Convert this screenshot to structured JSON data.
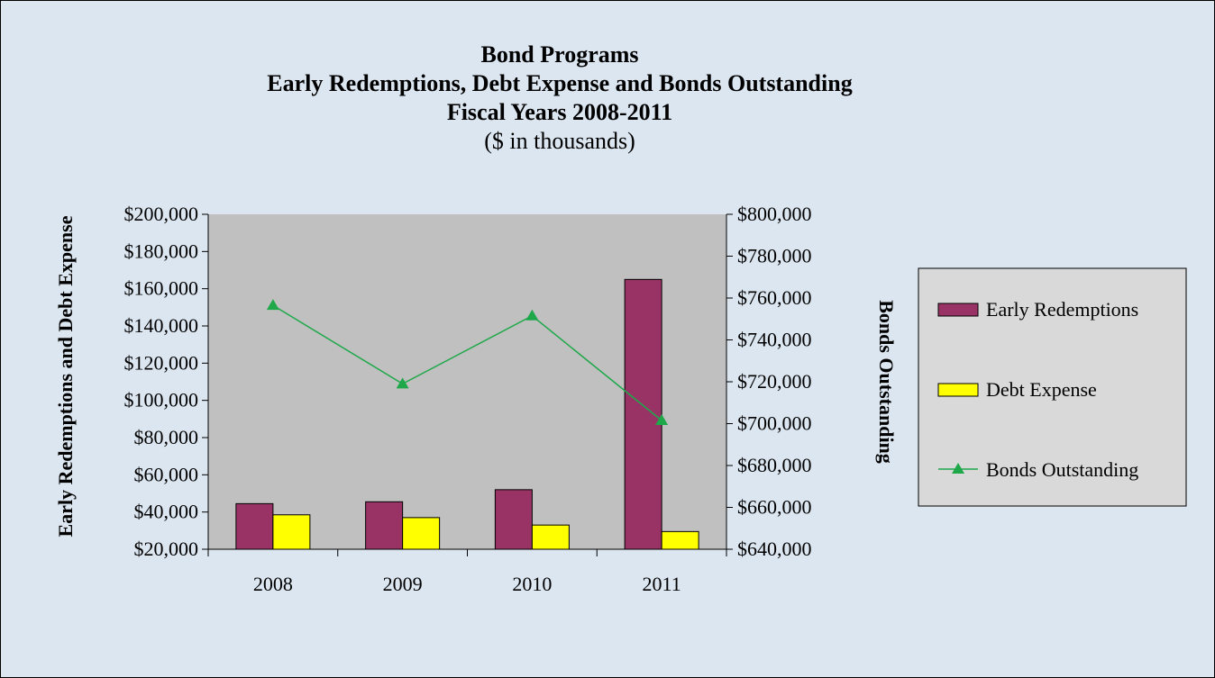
{
  "chart_data": {
    "type": "bar",
    "title": "Bond Programs",
    "title_line2": "Early Redemptions, Debt Expense and Bonds Outstanding",
    "title_line3": "Fiscal Years 2008-2011",
    "subtitle": "($ in thousands)",
    "categories": [
      "2008",
      "2009",
      "2010",
      "2011"
    ],
    "series": [
      {
        "name": "Early Redemptions",
        "type": "bar",
        "axis": "left",
        "color": "#993366",
        "values": [
          44500,
          45500,
          52000,
          165000
        ]
      },
      {
        "name": "Debt Expense",
        "type": "bar",
        "axis": "left",
        "color": "#ffff00",
        "values": [
          38500,
          37000,
          33000,
          29500
        ]
      },
      {
        "name": "Bonds Outstanding",
        "type": "line",
        "axis": "right",
        "color": "#1ea84a",
        "marker": "triangle",
        "values": [
          756500,
          719000,
          751500,
          701500
        ]
      }
    ],
    "ylabel": "Early Redemptions and Debt Expense",
    "y2label": "Bonds Outstanding",
    "ylim": [
      20000,
      200000
    ],
    "y2lim": [
      640000,
      800000
    ],
    "yticks": [
      "$20,000",
      "$40,000",
      "$60,000",
      "$80,000",
      "$100,000",
      "$120,000",
      "$140,000",
      "$160,000",
      "$180,000",
      "$200,000"
    ],
    "y2ticks": [
      "$640,000",
      "$660,000",
      "$680,000",
      "$700,000",
      "$720,000",
      "$740,000",
      "$760,000",
      "$780,000",
      "$800,000"
    ],
    "plot_background": "#c0c0c0",
    "chart_background": "#dce6f1",
    "legend_background": "#d9d9d9",
    "grid": false,
    "legend": "right"
  }
}
